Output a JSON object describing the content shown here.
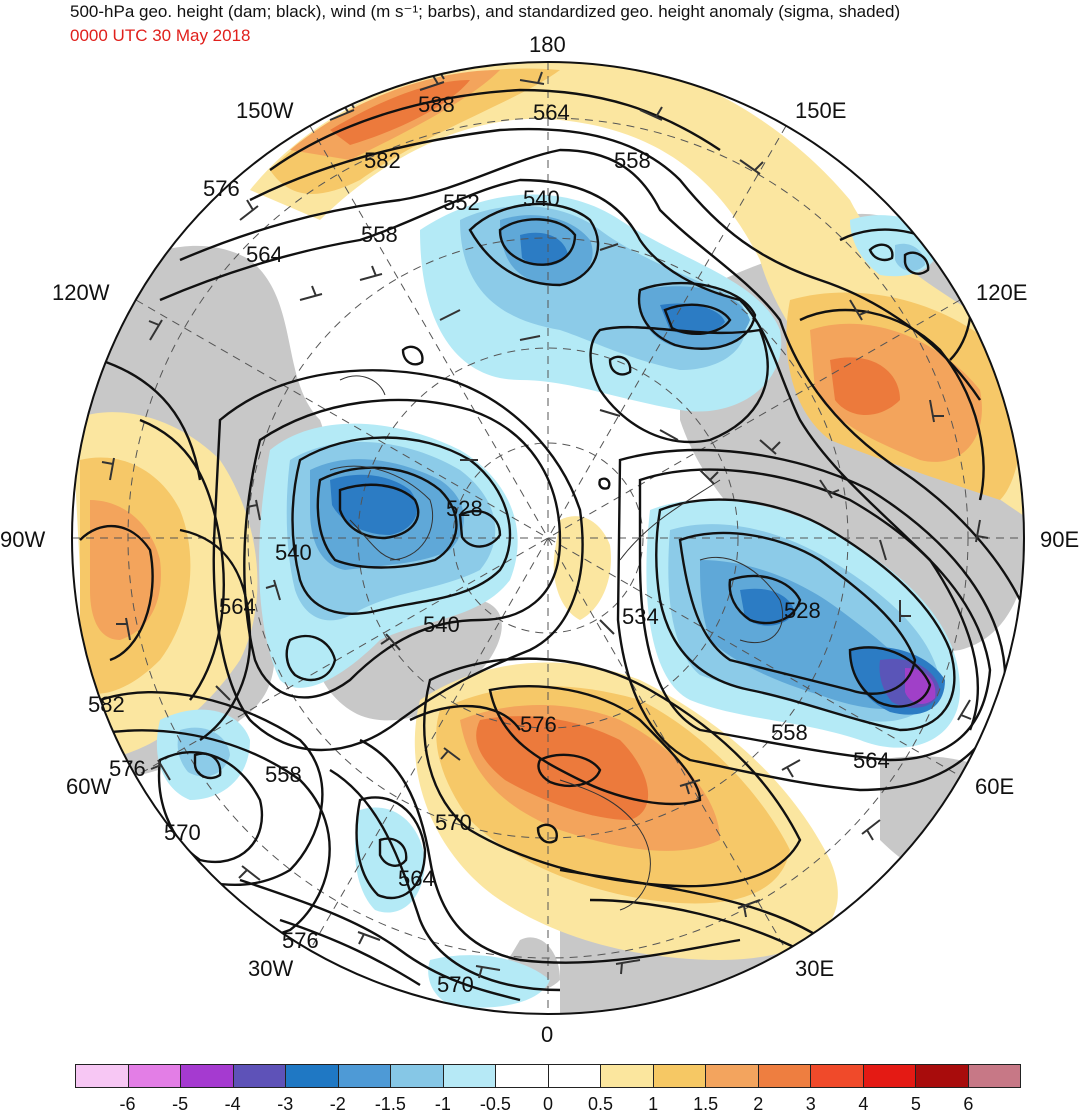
{
  "header": {
    "title": "500-hPa geo. height (dam; black), wind (m s⁻¹; barbs), and standardized geo. height anomaly (sigma, shaded)",
    "valid_time": "0000 UTC 30 May 2018"
  },
  "map": {
    "projection": "north polar stereographic",
    "longitude_labels": {
      "top": "180",
      "bottom": "0",
      "left": "90W",
      "right": "90E",
      "upper_left_1": "150W",
      "upper_left_2": "120W",
      "upper_right_1": "150E",
      "upper_right_2": "120E",
      "lower_left_1": "60W",
      "lower_left_2": "30W",
      "lower_right_1": "60E",
      "lower_right_2": "30E"
    },
    "contour_labels": {
      "c588": "588",
      "c582a": "582",
      "c576a": "576",
      "c564a": "564",
      "c558a": "558",
      "c552": "552",
      "c540a": "540",
      "c564b": "564",
      "c558b": "558",
      "c528a": "528",
      "c540b": "540",
      "c540c": "540",
      "c564c": "564",
      "c582b": "582",
      "c576b": "576",
      "c570a": "570",
      "c558c": "558",
      "c564d": "564",
      "c576c": "576",
      "c570b": "570",
      "c576d": "576",
      "c570c": "570",
      "c534": "534",
      "c528b": "528",
      "c558d": "558",
      "c564e": "564"
    },
    "colors": {
      "land": "#c8c8c8",
      "neg_05_1": "#b4eaf6",
      "neg_1_15": "#8ccbe8",
      "neg_15_2": "#5fa8d8",
      "neg_2_3": "#2c7cc4",
      "neg_3_4": "#5a55b8",
      "neg_4_5": "#a040c8",
      "pos_05_1": "#fbe6a0",
      "pos_1_15": "#f6c868",
      "pos_15_2": "#f3a45c",
      "pos_2_3": "#ec7a3c"
    }
  },
  "legend": {
    "colors": [
      "#f7c7f4",
      "#e37ee6",
      "#a53ad0",
      "#5e52b8",
      "#1f78c4",
      "#4e9ad6",
      "#86c7e6",
      "#b6e9f6",
      "#ffffff",
      "#ffffff",
      "#fbe69e",
      "#f6c864",
      "#f3a45e",
      "#ee7e40",
      "#f04a2a",
      "#e41a14",
      "#a80c0c",
      "#c77886"
    ],
    "ticks": [
      "-6",
      "-5",
      "-4",
      "-3",
      "-2",
      "-1.5",
      "-1",
      "-0.5",
      "0",
      "0.5",
      "1",
      "1.5",
      "2",
      "3",
      "4",
      "5",
      "6"
    ]
  }
}
